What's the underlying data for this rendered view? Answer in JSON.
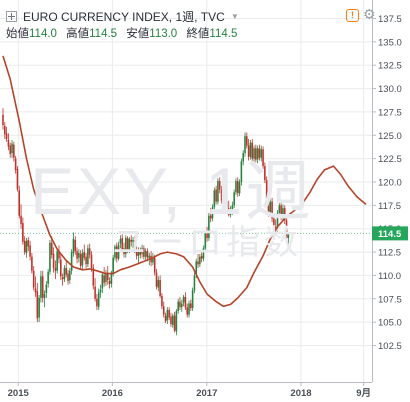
{
  "header": {
    "title": "EURO CURRENCY INDEX, 1週, TVC",
    "ohlc": [
      {
        "label": "始値",
        "value": "114.0"
      },
      {
        "label": "高値",
        "value": "114.5"
      },
      {
        "label": "安値",
        "value": "113.0"
      },
      {
        "label": "終値",
        "value": "114.5"
      }
    ]
  },
  "watermark": {
    "symbol": "EXY, 1週",
    "name": "ユーロ指数"
  },
  "icons": {
    "collapse": "plus-square-icon",
    "caret": "caret-down-icon",
    "alert": "alert-icon",
    "settings": "settings-icon"
  },
  "colors": {
    "up": "#26823f",
    "down": "#c0312b",
    "ma": "#b5452a",
    "last_price_badge": "#26a65b",
    "axis_text": "#4a4f57",
    "grid": "#e9ebee",
    "last_price_line": "#7fc79a"
  },
  "chart_data": {
    "type": "candlestick",
    "title": "EURO CURRENCY INDEX, 1週, TVC",
    "timeframe": "1週",
    "ylim": [
      102.5,
      138.0
    ],
    "y_ticks": [
      102.5,
      105.0,
      107.5,
      110.0,
      112.5,
      115.0,
      117.5,
      120.0,
      122.5,
      125.0,
      127.5,
      130.0,
      132.5,
      135.0,
      137.5
    ],
    "y_tick_labels": [
      "102.5",
      "105.0",
      "107.5",
      "110.0",
      "112.5",
      "115.0",
      "117.5",
      "120.0",
      "122.5",
      "125.0",
      "127.5",
      "130.0",
      "132.5",
      "135.0",
      "137.5"
    ],
    "xlim": [
      "2014-11-03",
      "2018-09-10"
    ],
    "x_ticks": [
      {
        "date": "2015-01-01",
        "label": "2015"
      },
      {
        "date": "2016-01-01",
        "label": "2016"
      },
      {
        "date": "2017-01-01",
        "label": "2017"
      },
      {
        "date": "2018-01-01",
        "label": "2018"
      },
      {
        "date": "2018-09-01",
        "label": "9月"
      }
    ],
    "last_price": 114.5,
    "last_price_label": "114.5",
    "grid": true,
    "candles_start_date": "2014-11-03",
    "candle_interval_days": 7,
    "candles": [
      [
        127.2,
        127.9,
        125.6,
        126.1
      ],
      [
        126.0,
        126.4,
        124.6,
        125.1
      ],
      [
        125.2,
        125.9,
        124.3,
        124.6
      ],
      [
        124.5,
        125.2,
        123.4,
        123.8
      ],
      [
        123.9,
        124.2,
        122.6,
        123.0
      ],
      [
        123.1,
        124.5,
        122.6,
        124.1
      ],
      [
        124.0,
        124.3,
        122.2,
        122.6
      ],
      [
        122.5,
        122.8,
        120.9,
        121.3
      ],
      [
        121.4,
        121.7,
        119.0,
        119.2
      ],
      [
        119.1,
        119.6,
        116.1,
        116.4
      ],
      [
        116.4,
        117.6,
        115.0,
        115.5
      ],
      [
        115.6,
        116.2,
        113.3,
        113.6
      ],
      [
        113.7,
        114.2,
        112.2,
        112.5
      ],
      [
        112.4,
        114.0,
        111.9,
        113.7
      ],
      [
        113.8,
        114.1,
        112.6,
        113.1
      ],
      [
        113.2,
        113.7,
        111.6,
        112.0
      ],
      [
        112.0,
        112.4,
        110.2,
        110.5
      ],
      [
        110.5,
        111.0,
        108.4,
        108.7
      ],
      [
        108.6,
        109.9,
        107.7,
        108.2
      ],
      [
        108.3,
        109.2,
        105.0,
        105.4
      ],
      [
        105.5,
        107.9,
        105.0,
        107.6
      ],
      [
        107.6,
        110.5,
        107.1,
        109.9
      ],
      [
        109.9,
        110.5,
        107.1,
        107.6
      ],
      [
        107.6,
        108.4,
        106.6,
        108.0
      ],
      [
        108.1,
        109.4,
        107.6,
        109.0
      ],
      [
        109.1,
        110.7,
        108.7,
        110.4
      ],
      [
        110.4,
        113.8,
        110.1,
        113.5
      ],
      [
        113.5,
        114.2,
        111.8,
        112.2
      ],
      [
        112.3,
        113.0,
        110.3,
        110.8
      ],
      [
        110.8,
        111.6,
        109.6,
        110.5
      ],
      [
        110.5,
        112.9,
        110.2,
        112.6
      ],
      [
        112.5,
        113.2,
        111.3,
        111.8
      ],
      [
        111.7,
        112.3,
        109.5,
        109.9
      ],
      [
        109.8,
        110.2,
        108.9,
        109.6
      ],
      [
        109.6,
        111.1,
        109.3,
        110.8
      ],
      [
        110.8,
        111.5,
        109.8,
        110.1
      ],
      [
        110.2,
        110.6,
        109.0,
        109.4
      ],
      [
        109.5,
        110.8,
        109.1,
        110.5
      ],
      [
        110.5,
        112.8,
        110.1,
        112.5
      ],
      [
        112.4,
        114.6,
        112.0,
        113.9
      ],
      [
        113.8,
        114.2,
        112.2,
        112.6
      ],
      [
        112.6,
        113.0,
        111.3,
        111.8
      ],
      [
        111.9,
        112.8,
        111.4,
        112.4
      ],
      [
        112.3,
        112.7,
        110.6,
        111.0
      ],
      [
        111.1,
        112.8,
        110.7,
        112.4
      ],
      [
        112.5,
        113.3,
        111.6,
        111.9
      ],
      [
        112.0,
        112.4,
        110.8,
        111.2
      ],
      [
        111.2,
        113.3,
        110.9,
        112.9
      ],
      [
        112.9,
        113.4,
        111.8,
        112.2
      ],
      [
        112.2,
        112.6,
        110.4,
        110.8
      ],
      [
        110.8,
        111.2,
        108.5,
        108.9
      ],
      [
        108.8,
        109.7,
        107.2,
        107.5
      ],
      [
        107.5,
        108.0,
        106.3,
        106.7
      ],
      [
        106.6,
        108.6,
        106.3,
        108.2
      ],
      [
        108.2,
        109.0,
        107.6,
        108.5
      ],
      [
        108.6,
        110.4,
        108.1,
        110.1
      ],
      [
        110.0,
        110.9,
        108.8,
        109.2
      ],
      [
        109.3,
        110.6,
        108.9,
        110.3
      ],
      [
        110.3,
        111.0,
        109.0,
        109.5
      ],
      [
        109.4,
        109.8,
        108.6,
        109.1
      ],
      [
        109.1,
        110.5,
        108.7,
        110.3
      ],
      [
        110.2,
        112.2,
        109.9,
        111.9
      ],
      [
        111.9,
        113.3,
        111.6,
        113.1
      ],
      [
        113.1,
        113.5,
        111.4,
        111.8
      ],
      [
        111.8,
        113.6,
        111.6,
        113.3
      ],
      [
        113.4,
        114.3,
        112.9,
        113.9
      ],
      [
        114.0,
        114.4,
        112.5,
        112.8
      ],
      [
        112.9,
        113.5,
        111.9,
        112.3
      ],
      [
        112.3,
        114.3,
        111.9,
        114.0
      ],
      [
        114.0,
        114.2,
        112.4,
        112.7
      ],
      [
        112.7,
        114.1,
        112.4,
        113.9
      ],
      [
        113.8,
        114.3,
        113.1,
        113.6
      ],
      [
        113.6,
        114.1,
        112.9,
        113.8
      ],
      [
        113.8,
        114.2,
        112.4,
        112.7
      ],
      [
        112.7,
        113.1,
        111.7,
        112.1
      ],
      [
        112.1,
        113.0,
        111.2,
        112.6
      ],
      [
        112.6,
        113.0,
        111.8,
        112.2
      ],
      [
        112.3,
        113.3,
        111.9,
        112.9
      ],
      [
        112.9,
        113.2,
        111.7,
        112.0
      ],
      [
        112.0,
        112.9,
        111.6,
        112.6
      ],
      [
        112.6,
        112.9,
        111.5,
        111.9
      ],
      [
        111.9,
        112.4,
        111.1,
        112.1
      ],
      [
        112.1,
        112.6,
        111.0,
        111.4
      ],
      [
        111.4,
        112.4,
        111.1,
        112.0
      ],
      [
        111.9,
        112.2,
        110.0,
        110.3
      ],
      [
        110.3,
        110.7,
        108.5,
        108.8
      ],
      [
        108.7,
        109.9,
        108.3,
        109.5
      ],
      [
        109.5,
        110.0,
        107.6,
        107.8
      ],
      [
        107.8,
        108.1,
        106.4,
        106.7
      ],
      [
        106.7,
        107.2,
        105.5,
        105.8
      ],
      [
        105.7,
        106.0,
        104.9,
        105.1
      ],
      [
        105.2,
        106.6,
        104.8,
        106.3
      ],
      [
        106.3,
        106.6,
        105.2,
        105.5
      ],
      [
        105.6,
        106.0,
        104.5,
        104.8
      ],
      [
        104.7,
        105.9,
        104.4,
        105.7
      ],
      [
        105.7,
        106.1,
        103.9,
        104.1
      ],
      [
        104.0,
        106.4,
        103.6,
        106.2
      ],
      [
        106.2,
        107.5,
        105.9,
        107.2
      ],
      [
        107.2,
        107.7,
        106.3,
        106.6
      ],
      [
        106.6,
        107.4,
        106.1,
        107.0
      ],
      [
        107.1,
        107.9,
        106.7,
        107.7
      ],
      [
        107.7,
        108.2,
        106.3,
        106.6
      ],
      [
        106.6,
        107.0,
        105.5,
        105.8
      ],
      [
        105.8,
        107.3,
        105.5,
        107.0
      ],
      [
        107.0,
        107.4,
        106.2,
        106.5
      ],
      [
        106.5,
        108.7,
        106.2,
        108.4
      ],
      [
        108.4,
        110.3,
        108.1,
        110.0
      ],
      [
        110.1,
        111.8,
        109.7,
        111.5
      ],
      [
        111.5,
        112.3,
        110.8,
        111.2
      ],
      [
        111.2,
        112.3,
        110.9,
        112.0
      ],
      [
        112.1,
        112.6,
        111.4,
        111.8
      ],
      [
        111.8,
        113.2,
        111.5,
        112.9
      ],
      [
        112.9,
        114.8,
        112.6,
        114.5
      ],
      [
        114.5,
        115.2,
        113.6,
        114.0
      ],
      [
        114.0,
        116.7,
        113.7,
        116.4
      ],
      [
        116.4,
        117.2,
        115.7,
        116.1
      ],
      [
        116.1,
        117.6,
        115.8,
        117.3
      ],
      [
        117.3,
        119.4,
        117.0,
        119.1
      ],
      [
        119.2,
        119.6,
        117.6,
        117.9
      ],
      [
        117.9,
        120.4,
        117.6,
        120.1
      ],
      [
        120.1,
        120.5,
        118.8,
        119.2
      ],
      [
        119.2,
        119.6,
        117.7,
        118.0
      ],
      [
        118.0,
        118.6,
        116.8,
        117.1
      ],
      [
        117.0,
        118.2,
        116.6,
        117.9
      ],
      [
        117.9,
        118.5,
        116.9,
        117.2
      ],
      [
        117.2,
        118.0,
        116.3,
        116.5
      ],
      [
        116.5,
        117.4,
        116.2,
        117.0
      ],
      [
        117.0,
        117.9,
        116.5,
        117.5
      ],
      [
        117.5,
        119.2,
        117.2,
        118.9
      ],
      [
        118.9,
        120.4,
        118.6,
        120.1
      ],
      [
        120.1,
        120.5,
        118.4,
        118.8
      ],
      [
        118.8,
        120.3,
        118.5,
        120.0
      ],
      [
        120.0,
        122.5,
        119.6,
        122.2
      ],
      [
        122.2,
        123.4,
        121.8,
        123.1
      ],
      [
        123.1,
        125.3,
        122.7,
        124.9
      ],
      [
        124.9,
        125.3,
        123.6,
        123.9
      ],
      [
        123.9,
        124.6,
        122.3,
        122.7
      ],
      [
        122.7,
        124.5,
        122.4,
        124.2
      ],
      [
        124.2,
        124.6,
        122.1,
        122.5
      ],
      [
        122.5,
        123.9,
        122.2,
        123.6
      ],
      [
        123.6,
        124.0,
        122.1,
        122.4
      ],
      [
        122.4,
        123.9,
        122.0,
        123.6
      ],
      [
        123.6,
        124.0,
        122.3,
        122.6
      ],
      [
        122.6,
        123.9,
        122.2,
        123.5
      ],
      [
        123.5,
        123.8,
        121.4,
        121.7
      ],
      [
        121.7,
        122.1,
        119.9,
        120.2
      ],
      [
        120.2,
        120.6,
        117.9,
        118.3
      ],
      [
        118.3,
        118.8,
        116.3,
        116.7
      ],
      [
        116.7,
        118.2,
        116.4,
        117.9
      ],
      [
        117.9,
        118.3,
        115.7,
        116.1
      ],
      [
        116.1,
        116.5,
        114.8,
        115.2
      ],
      [
        115.2,
        116.0,
        114.4,
        114.8
      ],
      [
        114.8,
        117.0,
        114.5,
        116.7
      ],
      [
        116.7,
        117.9,
        116.4,
        117.5
      ],
      [
        117.5,
        117.9,
        115.9,
        116.3
      ],
      [
        116.3,
        117.6,
        115.9,
        117.2
      ],
      [
        117.2,
        117.5,
        115.5,
        115.9
      ],
      [
        115.9,
        116.2,
        113.6,
        114.0
      ],
      [
        114.0,
        114.5,
        113.0,
        114.5
      ]
    ],
    "ma_period": 30,
    "ma_series": [
      [
        "2014-11-03",
        133.5
      ],
      [
        "2014-12-01",
        131.0
      ],
      [
        "2015-01-05",
        126.5
      ],
      [
        "2015-02-02",
        122.5
      ],
      [
        "2015-03-02",
        119.2
      ],
      [
        "2015-04-06",
        116.4
      ],
      [
        "2015-05-04",
        114.3
      ],
      [
        "2015-06-01",
        112.8
      ],
      [
        "2015-07-06",
        111.6
      ],
      [
        "2015-08-03",
        110.9
      ],
      [
        "2015-09-07",
        110.6
      ],
      [
        "2015-10-05",
        110.7
      ],
      [
        "2015-11-02",
        110.5
      ],
      [
        "2015-12-07",
        110.2
      ],
      [
        "2016-01-04",
        110.2
      ],
      [
        "2016-02-01",
        110.6
      ],
      [
        "2016-03-07",
        110.9
      ],
      [
        "2016-04-04",
        111.2
      ],
      [
        "2016-05-02",
        111.5
      ],
      [
        "2016-06-06",
        111.9
      ],
      [
        "2016-07-04",
        112.3
      ],
      [
        "2016-08-01",
        112.5
      ],
      [
        "2016-09-05",
        112.3
      ],
      [
        "2016-10-03",
        112.0
      ],
      [
        "2016-11-07",
        110.9
      ],
      [
        "2016-12-05",
        109.3
      ],
      [
        "2017-01-02",
        108.0
      ],
      [
        "2017-02-06",
        107.2
      ],
      [
        "2017-03-06",
        106.7
      ],
      [
        "2017-04-03",
        106.9
      ],
      [
        "2017-05-01",
        107.6
      ],
      [
        "2017-06-05",
        108.7
      ],
      [
        "2017-07-03",
        110.3
      ],
      [
        "2017-08-07",
        112.1
      ],
      [
        "2017-09-04",
        113.9
      ],
      [
        "2017-10-02",
        115.2
      ],
      [
        "2017-11-06",
        116.3
      ],
      [
        "2017-12-04",
        116.9
      ],
      [
        "2018-01-01",
        117.5
      ],
      [
        "2018-02-05",
        118.9
      ],
      [
        "2018-03-05",
        120.3
      ],
      [
        "2018-04-02",
        121.3
      ],
      [
        "2018-05-07",
        121.7
      ],
      [
        "2018-06-04",
        120.8
      ],
      [
        "2018-07-02",
        119.6
      ],
      [
        "2018-08-06",
        118.4
      ],
      [
        "2018-09-10",
        117.6
      ]
    ]
  }
}
